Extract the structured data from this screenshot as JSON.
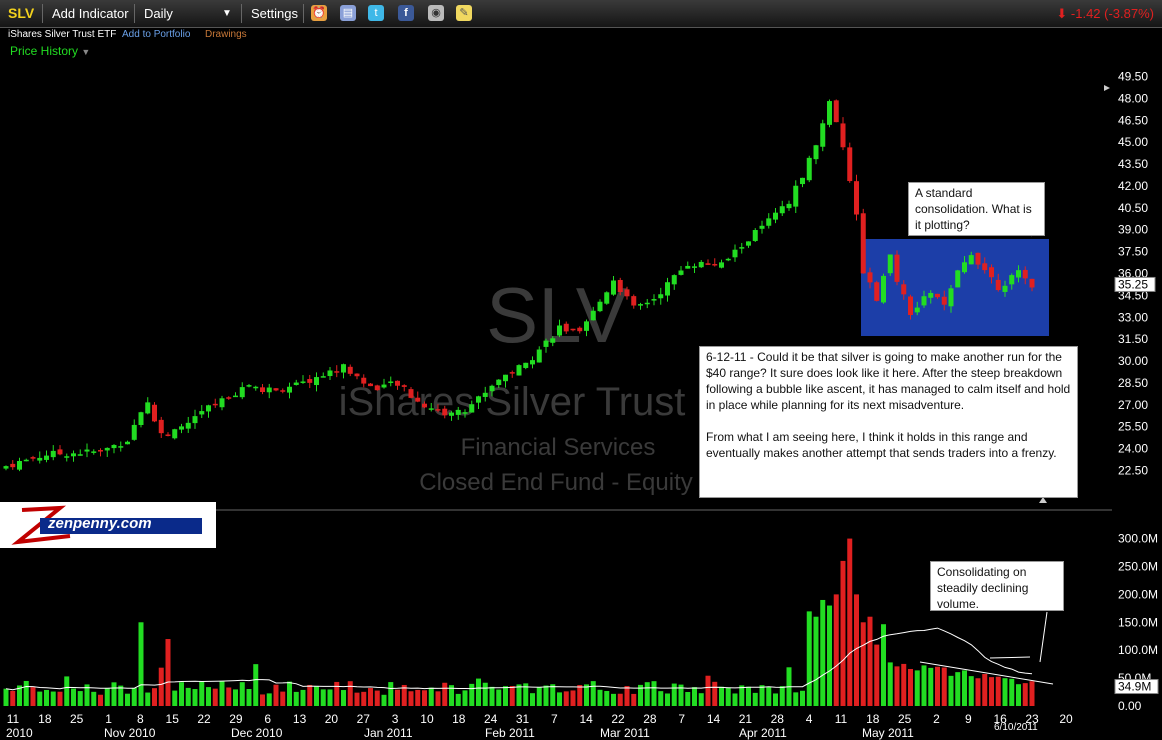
{
  "toolbar": {
    "symbol": "SLV",
    "add_indicator": "Add Indicator",
    "period": "Daily",
    "settings": "Settings",
    "change": "-1.42 (-3.87%)",
    "colors": {
      "up": "#22dd22",
      "down": "#e02020",
      "accent": "#f3d21d"
    }
  },
  "subbar": {
    "name": "iShares Silver Trust ETF",
    "portfolio": "Add to Portfolio",
    "drawings": "Drawings"
  },
  "price_history_label": "Price History",
  "watermark": {
    "symbol": "SLV",
    "name": "iShares Silver Trust",
    "sector": "Financial Services",
    "category": "Closed End Fund - Equity"
  },
  "notes": {
    "consolidation": "A standard consolidation. What is it plotting?",
    "main_p1": "6-12-11 - Could it be that silver is going to make another run for the $40 range? It sure does look like it here. After the steep breakdown following a bubble like ascent, it has managed to calm itself and hold in place while planning for its next misadventure.",
    "main_p2": "From what I am seeing here, I think it holds in this range and eventually makes another attempt that sends traders into a frenzy.",
    "volume": "Consolidating on steadily declining volume."
  },
  "logo_text": "zenpenny.com",
  "chart_data": {
    "type": "candlestick",
    "price_axis": {
      "ticks": [
        "49.50",
        "48.00",
        "46.50",
        "45.00",
        "43.50",
        "42.00",
        "40.50",
        "39.00",
        "37.50",
        "36.00",
        "34.50",
        "33.00",
        "31.50",
        "30.00",
        "28.50",
        "27.00",
        "25.50",
        "24.00",
        "22.50"
      ],
      "range": [
        21.5,
        50.5
      ],
      "last_price": "35.25"
    },
    "volume_axis": {
      "ticks": [
        "300.0M",
        "250.0M",
        "200.0M",
        "150.0M",
        "100.0M",
        "50.0M",
        "0.00"
      ],
      "range": [
        0,
        310
      ],
      "last_volume": "34.9M"
    },
    "x_ticks": [
      "11",
      "18",
      "25",
      "1",
      "8",
      "15",
      "22",
      "29",
      "6",
      "13",
      "20",
      "27",
      "3",
      "10",
      "18",
      "24",
      "31",
      "7",
      "14",
      "22",
      "28",
      "7",
      "14",
      "21",
      "28",
      "4",
      "11",
      "18",
      "25",
      "2",
      "9",
      "16",
      "23",
      "20"
    ],
    "month_labels": [
      "2010",
      "Nov 2010",
      "Dec 2010",
      "Jan 2011",
      "Feb 2011",
      "Mar 2011",
      "Apr 2011",
      "May 2011"
    ],
    "last_date": "6/10/2011",
    "waypoints": [
      {
        "i": 0,
        "p": 22.8
      },
      {
        "i": 6,
        "p": 23.6
      },
      {
        "i": 14,
        "p": 23.8
      },
      {
        "i": 18,
        "p": 24.6
      },
      {
        "i": 20,
        "p": 26.6
      },
      {
        "i": 21,
        "p": 27.3
      },
      {
        "i": 22,
        "p": 25.8
      },
      {
        "i": 24,
        "p": 24.8
      },
      {
        "i": 30,
        "p": 26.8
      },
      {
        "i": 36,
        "p": 28.4
      },
      {
        "i": 38,
        "p": 28.0
      },
      {
        "i": 43,
        "p": 28.3
      },
      {
        "i": 50,
        "p": 29.6
      },
      {
        "i": 54,
        "p": 28.2
      },
      {
        "i": 58,
        "p": 28.4
      },
      {
        "i": 61,
        "p": 27.2
      },
      {
        "i": 65,
        "p": 26.4
      },
      {
        "i": 68,
        "p": 26.6
      },
      {
        "i": 73,
        "p": 28.8
      },
      {
        "i": 77,
        "p": 29.8
      },
      {
        "i": 82,
        "p": 32.3
      },
      {
        "i": 85,
        "p": 31.8
      },
      {
        "i": 90,
        "p": 35.6
      },
      {
        "i": 93,
        "p": 33.6
      },
      {
        "i": 96,
        "p": 34.3
      },
      {
        "i": 101,
        "p": 36.7
      },
      {
        "i": 106,
        "p": 36.6
      },
      {
        "i": 111,
        "p": 38.8
      },
      {
        "i": 116,
        "p": 40.8
      },
      {
        "i": 120,
        "p": 44.8
      },
      {
        "i": 122,
        "p": 47.8
      },
      {
        "i": 123,
        "p": 46.5
      },
      {
        "i": 124,
        "p": 44.8
      },
      {
        "i": 125,
        "p": 42.5
      },
      {
        "i": 126,
        "p": 39.8
      },
      {
        "i": 127,
        "p": 36.2
      },
      {
        "i": 129,
        "p": 34.2
      },
      {
        "i": 131,
        "p": 37.1
      },
      {
        "i": 132,
        "p": 35.6
      },
      {
        "i": 134,
        "p": 33.1
      },
      {
        "i": 137,
        "p": 34.8
      },
      {
        "i": 139,
        "p": 33.7
      },
      {
        "i": 141,
        "p": 36.0
      },
      {
        "i": 143,
        "p": 37.4
      },
      {
        "i": 145,
        "p": 36.3
      },
      {
        "i": 147,
        "p": 35.1
      },
      {
        "i": 150,
        "p": 36.0
      },
      {
        "i": 152,
        "p": 35.25
      }
    ],
    "volume_spikes": [
      {
        "i": 20,
        "v": 150
      },
      {
        "i": 24,
        "v": 120
      },
      {
        "i": 37,
        "v": 75
      },
      {
        "i": 120,
        "v": 160
      },
      {
        "i": 121,
        "v": 190
      },
      {
        "i": 122,
        "v": 180
      },
      {
        "i": 123,
        "v": 200
      },
      {
        "i": 124,
        "v": 260
      },
      {
        "i": 125,
        "v": 300
      },
      {
        "i": 126,
        "v": 200
      },
      {
        "i": 127,
        "v": 150
      },
      {
        "i": 128,
        "v": 160
      },
      {
        "i": 129,
        "v": 110
      }
    ]
  }
}
